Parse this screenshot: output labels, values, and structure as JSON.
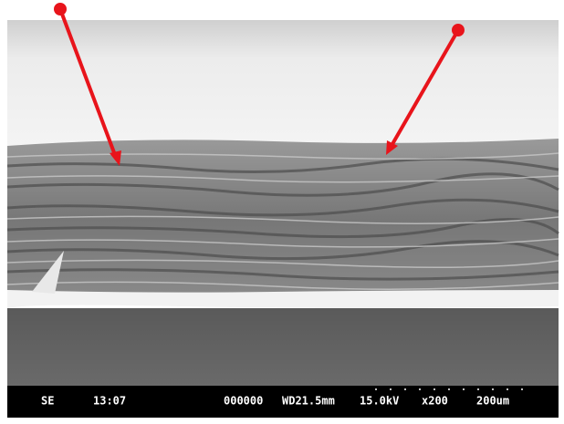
{
  "info_bar": {
    "detector": "SE",
    "time": "13:07",
    "image_number": "000000",
    "working_distance": "WD21.5mm",
    "voltage": "15.0kV",
    "magnification": "x200",
    "scale": "200um"
  }
}
